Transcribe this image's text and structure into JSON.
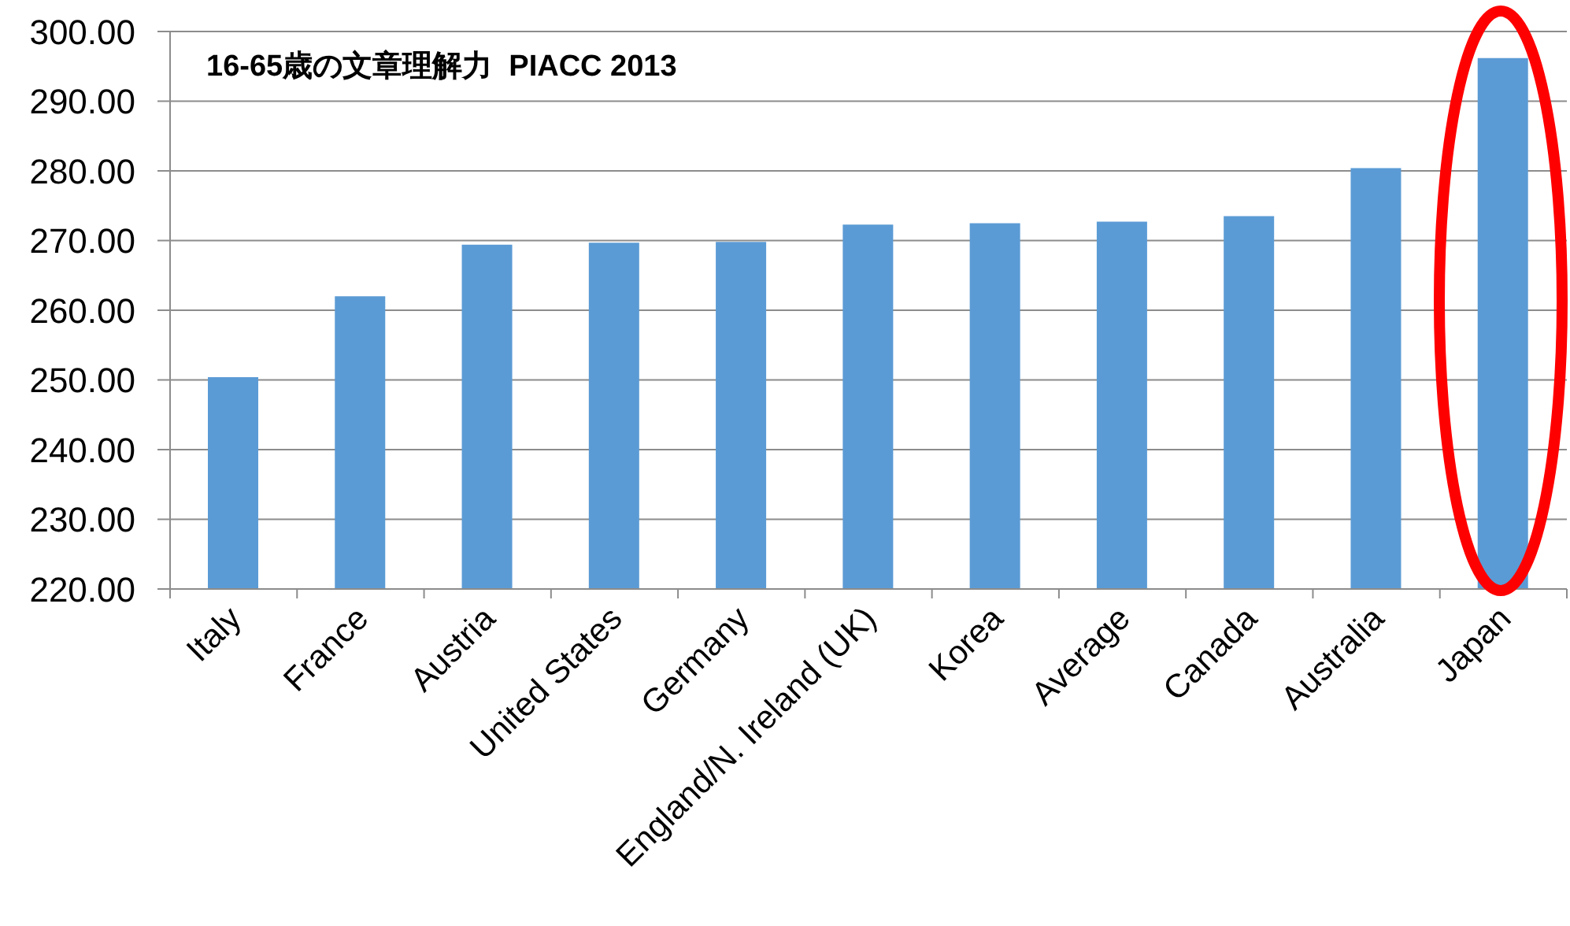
{
  "chart_data": {
    "type": "bar",
    "title": "16-65歳の文章理解力  PIACC 2013",
    "categories": [
      "Italy",
      "France",
      "Austria",
      "United States",
      "Germany",
      "England/N. Ireland (UK)",
      "Korea",
      "Average",
      "Canada",
      "Australia",
      "Japan"
    ],
    "values": [
      250.4,
      262.0,
      269.4,
      269.7,
      269.8,
      272.3,
      272.5,
      272.7,
      273.5,
      280.4,
      296.2
    ],
    "color": "#5b9bd5",
    "ylim": [
      220,
      300
    ],
    "yticks": [
      {
        "value": 220,
        "label": "220.00"
      },
      {
        "value": 230,
        "label": "230.00"
      },
      {
        "value": 240,
        "label": "240.00"
      },
      {
        "value": 250,
        "label": "250.00"
      },
      {
        "value": 260,
        "label": "260.00"
      },
      {
        "value": 270,
        "label": "270.00"
      },
      {
        "value": 280,
        "label": "280.00"
      },
      {
        "value": 290,
        "label": "290.00"
      },
      {
        "value": 300,
        "label": "300.00"
      }
    ],
    "grid": "y"
  }
}
